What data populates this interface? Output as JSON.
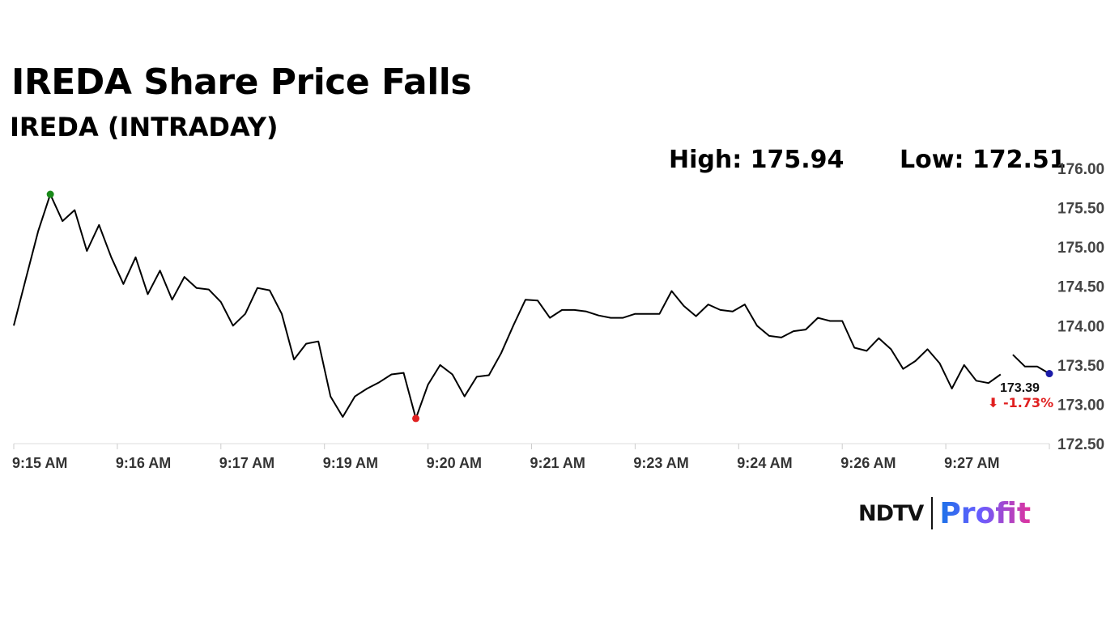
{
  "header": {
    "title": "IREDA Share Price Falls",
    "subtitle": "IREDA (INTRADAY)",
    "high_label": "High: 175.94",
    "low_label": "Low: 172.51"
  },
  "chart_data": {
    "type": "line",
    "title": "IREDA Share Price Falls",
    "subtitle": "IREDA (INTRADAY)",
    "xlabel": "",
    "ylabel": "",
    "ylim": [
      172.5,
      176.0
    ],
    "y_ticks": [
      172.5,
      173.0,
      173.5,
      174.0,
      174.5,
      175.0,
      175.5,
      176.0
    ],
    "y_tick_labels": [
      "172.50",
      "173.00",
      "173.50",
      "174.00",
      "174.50",
      "175.00",
      "175.50",
      "176.00"
    ],
    "x_tick_labels": [
      "9:15 AM",
      "9:16 AM",
      "9:17 AM",
      "9:19 AM",
      "9:20 AM",
      "9:21 AM",
      "9:23 AM",
      "9:24 AM",
      "9:26 AM",
      "9:27 AM"
    ],
    "grid": false,
    "series": [
      {
        "values": [
          174.0,
          174.6,
          175.2,
          175.67,
          175.33,
          175.47,
          174.95,
          175.28,
          174.87,
          174.53,
          174.87,
          174.4,
          174.7,
          174.33,
          174.62,
          174.48,
          174.46,
          174.3,
          174.0,
          174.15,
          174.48,
          174.45,
          174.15,
          173.57,
          173.77,
          173.8,
          173.1,
          172.84,
          173.1,
          173.2,
          173.28,
          173.38,
          173.4,
          172.82,
          173.25,
          173.5,
          173.38,
          173.1,
          173.35,
          173.37,
          173.65,
          174.0,
          174.33,
          174.32,
          174.1,
          174.2,
          174.2,
          174.18,
          174.13,
          174.1,
          174.1,
          174.15,
          174.15,
          174.15,
          174.44,
          174.25,
          174.12,
          174.27,
          174.2,
          174.18,
          174.27,
          174.0,
          173.87,
          173.85,
          173.93,
          173.95,
          174.1,
          174.06,
          174.06,
          173.72,
          173.68,
          173.84,
          173.7,
          173.45,
          173.55,
          173.7,
          173.52,
          173.2,
          173.5,
          173.3,
          173.27,
          173.38,
          173.63,
          173.48,
          173.48,
          173.39
        ]
      }
    ],
    "markers": {
      "high": {
        "value": 175.67,
        "color": "#1a8a1a"
      },
      "low": {
        "value": 172.82,
        "color": "#e02020"
      },
      "last": {
        "value": 173.39,
        "color": "#1a1aa8"
      }
    },
    "last_price_label": "173.39",
    "change_label": "⬇ -1.73%",
    "change_color": "#e02020",
    "line_color": "#000000"
  },
  "branding": {
    "ndtv": "NDTV",
    "profit": "Profit"
  }
}
